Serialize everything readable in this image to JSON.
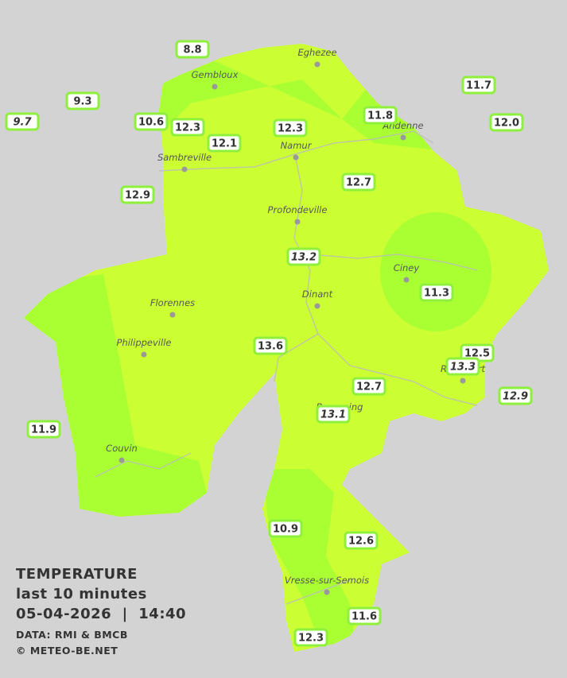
{
  "title": "TEMPERATURE",
  "subtitle": "last 10 minutes",
  "timestamp": "05-04-2026  |  14:40",
  "credits": [
    "DATA: RMI & BMCB",
    "© METEO-BE.NET"
  ],
  "towns": [
    "Eghezee",
    "Gembloux",
    "Andenne",
    "Namur",
    "Sambreville",
    "Profondeville",
    "Ciney",
    "Dinant",
    "Florennes",
    "Philippeville",
    "Beauraing",
    "Rochefort",
    "Couvin",
    "Vresse-sur-Semois"
  ],
  "readings": [
    "8.8",
    "9.3",
    "10.6",
    "12.3",
    "12.3",
    "12.1",
    "11.8",
    "11.7",
    "12.0",
    "12.7",
    "12.9",
    "11.3",
    "13.6",
    "12.5",
    "12.7",
    "11.9",
    "10.9",
    "12.6",
    "11.6",
    "12.3"
  ],
  "readings_italic": [
    "9.7",
    "13.2",
    "13.3",
    "12.9",
    "13.1"
  ]
}
